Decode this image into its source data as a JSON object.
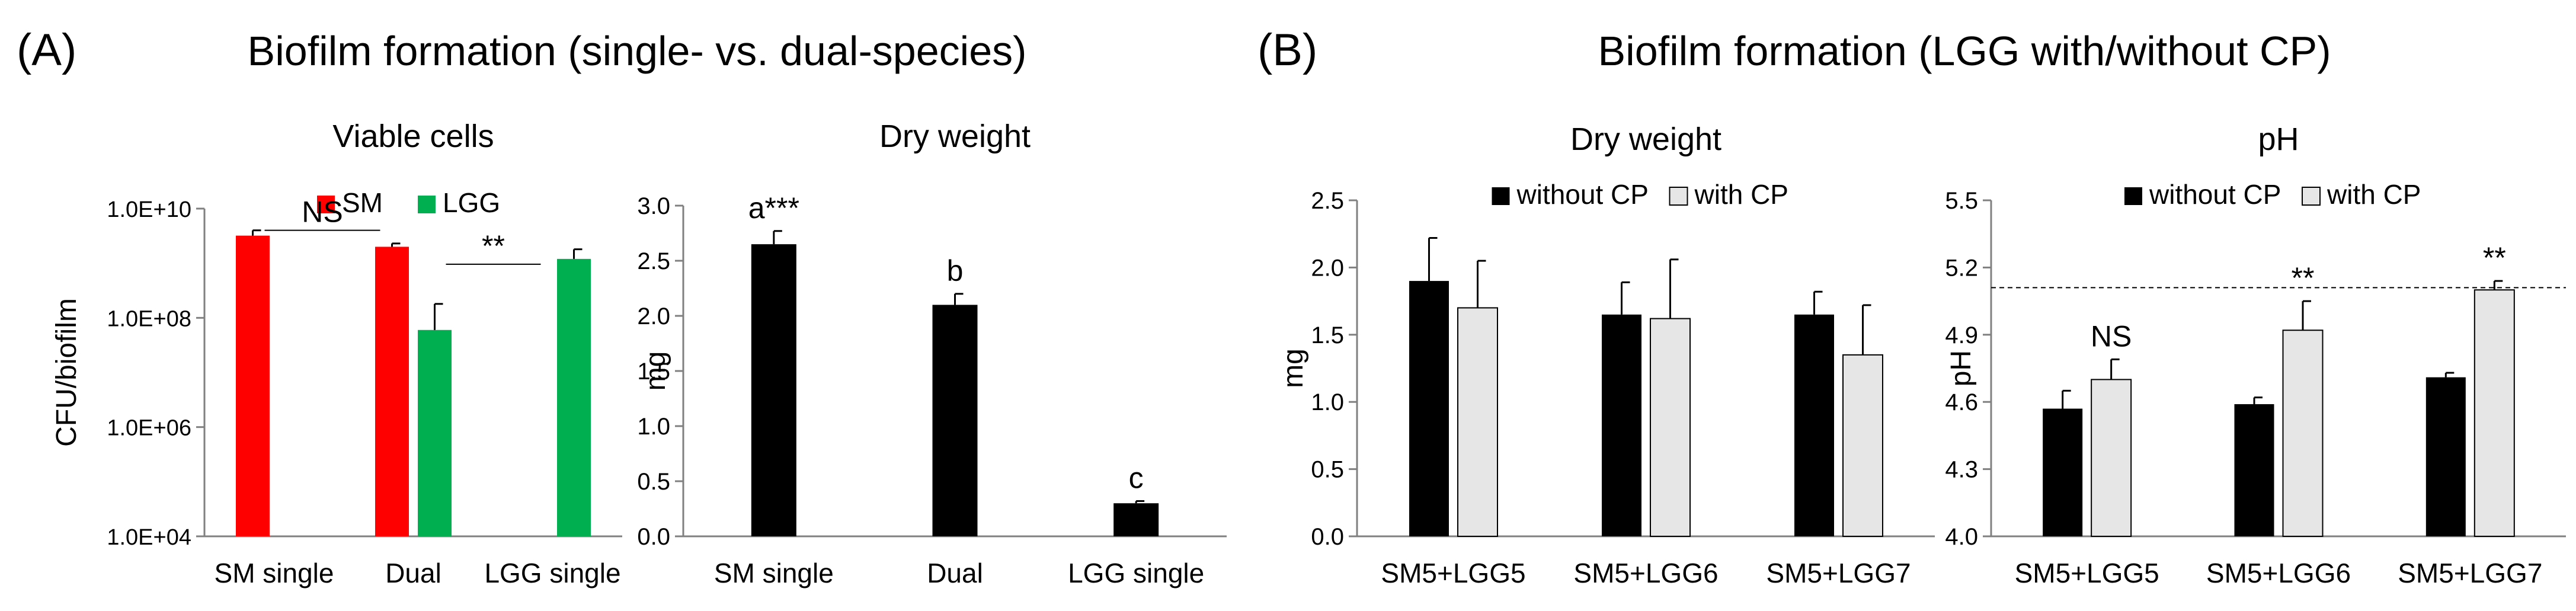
{
  "panels": {
    "A": {
      "letter": "(A)",
      "heading": "Biofilm formation (single- vs. dual-species)"
    },
    "B": {
      "letter": "(B)",
      "heading": "Biofilm formation (LGG with/without CP)"
    }
  },
  "chart_data": [
    {
      "id": "viable",
      "type": "bar",
      "title": "Viable cells",
      "xlabel": "",
      "ylabel": "CFU/biofilm",
      "yscale": "log",
      "ylim": [
        10000,
        10000000000
      ],
      "yticks": [
        10000,
        1000000,
        100000000,
        10000000000
      ],
      "ytick_labels": [
        "1.0E+04",
        "1.0E+06",
        "1.0E+08",
        "1.0E+10"
      ],
      "categories": [
        "SM single",
        "Dual",
        "LGG single"
      ],
      "series": [
        {
          "name": "SM",
          "color": "#ff0000",
          "values": [
            3200000000,
            2000000000,
            null
          ],
          "errors": [
            800000000,
            300000000,
            null
          ]
        },
        {
          "name": "LGG",
          "color": "#00b050",
          "values": [
            null,
            60000000,
            1200000000
          ],
          "errors": [
            null,
            120000000,
            600000000
          ]
        }
      ],
      "legend": {
        "position": "top"
      },
      "annotations": [
        {
          "text": "NS",
          "between": [
            0,
            1
          ]
        },
        {
          "text": "**",
          "between": [
            1,
            2
          ]
        }
      ]
    },
    {
      "id": "dry_a",
      "type": "bar",
      "title": "Dry weight",
      "xlabel": "",
      "ylabel": "mg",
      "ylim": [
        0,
        3.0
      ],
      "yticks": [
        0.0,
        0.5,
        1.0,
        1.5,
        2.0,
        2.5,
        3.0
      ],
      "ytick_labels": [
        "0.0",
        "0.5",
        "1.0",
        "1.5",
        "2.0",
        "2.5",
        "3.0"
      ],
      "categories": [
        "SM single",
        "Dual",
        "LGG single"
      ],
      "series": [
        {
          "name": "Dry weight",
          "color": "#000000",
          "values": [
            2.65,
            2.1,
            0.3
          ],
          "errors": [
            0.12,
            0.1,
            0.02
          ]
        }
      ],
      "bar_labels": [
        "a***",
        "b",
        "c"
      ]
    },
    {
      "id": "dry_b",
      "type": "bar",
      "title": "Dry weight",
      "xlabel": "",
      "ylabel": "mg",
      "ylim": [
        0,
        2.5
      ],
      "yticks": [
        0.0,
        0.5,
        1.0,
        1.5,
        2.0,
        2.5
      ],
      "ytick_labels": [
        "0.0",
        "0.5",
        "1.0",
        "1.5",
        "2.0",
        "2.5"
      ],
      "categories": [
        "SM5+LGG5",
        "SM5+LGG6",
        "SM5+LGG7"
      ],
      "series": [
        {
          "name": "without CP",
          "color": "#000000",
          "values": [
            1.9,
            1.65,
            1.65
          ],
          "errors": [
            0.32,
            0.24,
            0.17
          ]
        },
        {
          "name": "with CP",
          "color": "#e6e6e6",
          "values": [
            1.7,
            1.62,
            1.35
          ],
          "errors": [
            0.35,
            0.44,
            0.37
          ]
        }
      ],
      "legend": {
        "position": "top"
      }
    },
    {
      "id": "ph",
      "type": "bar",
      "title": "pH",
      "xlabel": "",
      "ylabel": "pH",
      "ylim": [
        4.0,
        5.5
      ],
      "yticks": [
        4.0,
        4.3,
        4.6,
        4.9,
        5.2,
        5.5
      ],
      "ytick_labels": [
        "4.0",
        "4.3",
        "4.6",
        "4.9",
        "5.2",
        "5.5"
      ],
      "categories": [
        "SM5+LGG5",
        "SM5+LGG6",
        "SM5+LGG7"
      ],
      "series": [
        {
          "name": "without CP",
          "color": "#000000",
          "values": [
            4.57,
            4.59,
            4.71
          ],
          "errors": [
            0.08,
            0.03,
            0.02
          ]
        },
        {
          "name": "with CP",
          "color": "#e6e6e6",
          "values": [
            4.7,
            4.92,
            5.1
          ],
          "errors": [
            0.09,
            0.13,
            0.04
          ]
        }
      ],
      "reference_line": {
        "y": 5.11,
        "style": "dashed"
      },
      "bar_labels": [
        [
          null,
          null,
          null
        ],
        [
          "NS",
          "**",
          "**"
        ]
      ],
      "legend": {
        "position": "top"
      }
    }
  ]
}
